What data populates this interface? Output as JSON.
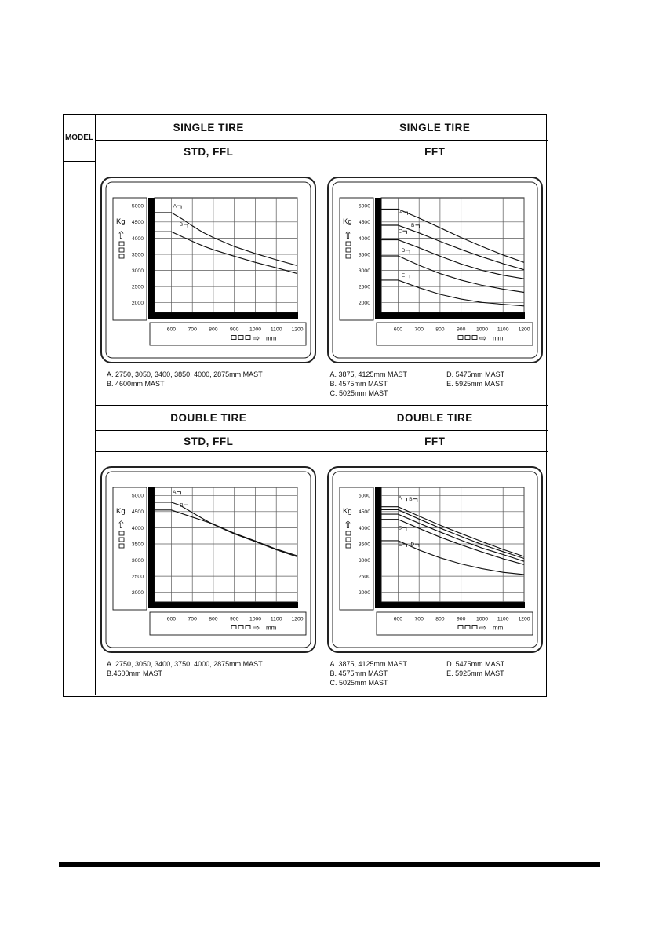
{
  "table": {
    "model_label": "MODEL",
    "quadrants": [
      {
        "title": "SINGLE TIRE",
        "subtitle": "STD, FFL",
        "footnote_col1": [
          "A. 2750, 3050, 3400, 3850, 4000, 2875mm MAST",
          "B. 4600mm MAST"
        ],
        "footnote_col2": []
      },
      {
        "title": "SINGLE TIRE",
        "subtitle": "FFT",
        "footnote_col1": [
          "A. 3875, 4125mm MAST",
          "B. 4575mm MAST",
          "C. 5025mm MAST"
        ],
        "footnote_col2": [
          "D. 5475mm MAST",
          "E. 5925mm MAST"
        ]
      },
      {
        "title": "DOUBLE TIRE",
        "subtitle": "STD, FFL",
        "footnote_col1": [
          "A. 2750, 3050, 3400, 3750, 4000, 2875mm MAST",
          "B.4600mm MAST"
        ],
        "footnote_col2": []
      },
      {
        "title": "DOUBLE TIRE",
        "subtitle": "FFT",
        "footnote_col1": [
          "A. 3875, 4125mm MAST",
          "B. 4575mm MAST",
          "C. 5025mm MAST"
        ],
        "footnote_col2": [
          "D. 5475mm MAST",
          "E. 5925mm MAST"
        ]
      }
    ]
  },
  "icons": {
    "up_arrow": "⇧",
    "right_arrow": "⇨"
  },
  "colors": {
    "ink": "#111111",
    "grid": "#5a5a5a",
    "frame": "#222222"
  },
  "chart_data": [
    {
      "type": "line",
      "title": "SINGLE TIRE STD, FFL load capacity",
      "xlabel": "mm",
      "ylabel": "Kg",
      "x_ticks": [
        600,
        700,
        800,
        900,
        1000,
        1100,
        1200
      ],
      "y_ticks": [
        5000,
        4500,
        4000,
        3500,
        3000,
        2500,
        2000
      ],
      "xlim": [
        520,
        1200
      ],
      "ylim": [
        1700,
        5250
      ],
      "grid": true,
      "series": [
        {
          "name": "A",
          "x": [
            520,
            600,
            650,
            700,
            750,
            800,
            900,
            1000,
            1100,
            1200
          ],
          "y": [
            4790,
            4790,
            4600,
            4380,
            4180,
            4020,
            3740,
            3520,
            3330,
            3150
          ]
        },
        {
          "name": "B",
          "x": [
            520,
            600,
            650,
            700,
            750,
            800,
            900,
            1000,
            1100,
            1200
          ],
          "y": [
            4200,
            4200,
            4050,
            3900,
            3760,
            3640,
            3440,
            3250,
            3080,
            2900
          ]
        }
      ],
      "labels": [
        {
          "text": "A",
          "x": 608,
          "y": 4950
        },
        {
          "text": "B",
          "x": 638,
          "y": 4370
        }
      ]
    },
    {
      "type": "line",
      "title": "SINGLE TIRE FFT load capacity",
      "xlabel": "mm",
      "ylabel": "Kg",
      "x_ticks": [
        600,
        700,
        800,
        900,
        1000,
        1100,
        1200
      ],
      "y_ticks": [
        5000,
        4500,
        4000,
        3500,
        3000,
        2500,
        2000
      ],
      "xlim": [
        520,
        1200
      ],
      "ylim": [
        1700,
        5250
      ],
      "grid": true,
      "series": [
        {
          "name": "A",
          "x": [
            520,
            600,
            700,
            800,
            900,
            1000,
            1100,
            1200
          ],
          "y": [
            4900,
            4900,
            4620,
            4320,
            4020,
            3740,
            3480,
            3250
          ]
        },
        {
          "name": "B",
          "x": [
            520,
            600,
            700,
            800,
            900,
            1000,
            1100,
            1200
          ],
          "y": [
            4400,
            4400,
            4160,
            3900,
            3650,
            3420,
            3210,
            3020
          ]
        },
        {
          "name": "C",
          "x": [
            520,
            600,
            700,
            800,
            900,
            1000,
            1100,
            1200
          ],
          "y": [
            3950,
            3950,
            3700,
            3440,
            3200,
            3000,
            2850,
            2740
          ]
        },
        {
          "name": "D",
          "x": [
            520,
            600,
            700,
            800,
            900,
            1000,
            1100,
            1200
          ],
          "y": [
            3450,
            3450,
            3160,
            2900,
            2700,
            2540,
            2420,
            2320
          ]
        },
        {
          "name": "E",
          "x": [
            520,
            600,
            700,
            800,
            900,
            1000,
            1100,
            1200
          ],
          "y": [
            2700,
            2700,
            2460,
            2260,
            2110,
            2010,
            1950,
            1900
          ]
        }
      ],
      "labels": [
        {
          "text": "A",
          "x": 606,
          "y": 4760
        },
        {
          "text": "B",
          "x": 662,
          "y": 4350
        },
        {
          "text": "C",
          "x": 602,
          "y": 4170
        },
        {
          "text": "D",
          "x": 616,
          "y": 3570
        },
        {
          "text": "E",
          "x": 616,
          "y": 2800
        }
      ]
    },
    {
      "type": "line",
      "title": "DOUBLE TIRE STD, FFL load capacity",
      "xlabel": "mm",
      "ylabel": "Kg",
      "x_ticks": [
        600,
        700,
        800,
        900,
        1000,
        1100,
        1200
      ],
      "y_ticks": [
        5000,
        4500,
        4000,
        3500,
        3000,
        2500,
        2000
      ],
      "xlim": [
        520,
        1200
      ],
      "ylim": [
        1700,
        5250
      ],
      "grid": true,
      "series": [
        {
          "name": "A",
          "x": [
            520,
            600,
            640,
            700,
            780,
            900,
            1000,
            1100,
            1200
          ],
          "y": [
            4790,
            4790,
            4700,
            4470,
            4170,
            3830,
            3590,
            3340,
            3130
          ]
        },
        {
          "name": "B",
          "x": [
            520,
            600,
            700,
            780,
            900,
            1000,
            1100,
            1200
          ],
          "y": [
            4550,
            4550,
            4330,
            4160,
            3810,
            3570,
            3320,
            3100
          ]
        }
      ],
      "labels": [
        {
          "text": "A",
          "x": 606,
          "y": 5060
        },
        {
          "text": "B",
          "x": 640,
          "y": 4660
        }
      ]
    },
    {
      "type": "line",
      "title": "DOUBLE TIRE FFT load capacity",
      "xlabel": "mm",
      "ylabel": "Kg",
      "x_ticks": [
        600,
        700,
        800,
        900,
        1000,
        1100,
        1200
      ],
      "y_ticks": [
        5000,
        4500,
        4000,
        3500,
        3000,
        2500,
        2000
      ],
      "xlim": [
        520,
        1200
      ],
      "ylim": [
        1700,
        5250
      ],
      "grid": true,
      "series": [
        {
          "name": "A",
          "x": [
            520,
            600,
            700,
            800,
            900,
            1000,
            1100,
            1200
          ],
          "y": [
            4650,
            4650,
            4360,
            4080,
            3820,
            3570,
            3330,
            3110
          ]
        },
        {
          "name": "B",
          "x": [
            520,
            600,
            700,
            800,
            900,
            1000,
            1100,
            1200
          ],
          "y": [
            4560,
            4560,
            4270,
            3990,
            3730,
            3480,
            3260,
            3050
          ]
        },
        {
          "name": "C",
          "x": [
            520,
            600,
            700,
            800,
            900,
            1000,
            1100,
            1200
          ],
          "y": [
            4420,
            4420,
            4140,
            3870,
            3610,
            3370,
            3170,
            2960
          ]
        },
        {
          "name": "D",
          "x": [
            520,
            600,
            700,
            800,
            900,
            1000,
            1100,
            1200
          ],
          "y": [
            4260,
            4260,
            3980,
            3710,
            3470,
            3250,
            3040,
            2860
          ]
        },
        {
          "name": "E",
          "x": [
            520,
            600,
            700,
            800,
            900,
            1000,
            1100,
            1200
          ],
          "y": [
            3600,
            3600,
            3310,
            3070,
            2880,
            2730,
            2620,
            2550
          ]
        }
      ],
      "labels": [
        {
          "text": "A",
          "x": 602,
          "y": 4870
        },
        {
          "text": "B",
          "x": 652,
          "y": 4840
        },
        {
          "text": "C",
          "x": 600,
          "y": 3950
        },
        {
          "text": "E",
          "x": 602,
          "y": 3440
        },
        {
          "text": "D",
          "x": 660,
          "y": 3440
        }
      ]
    }
  ]
}
